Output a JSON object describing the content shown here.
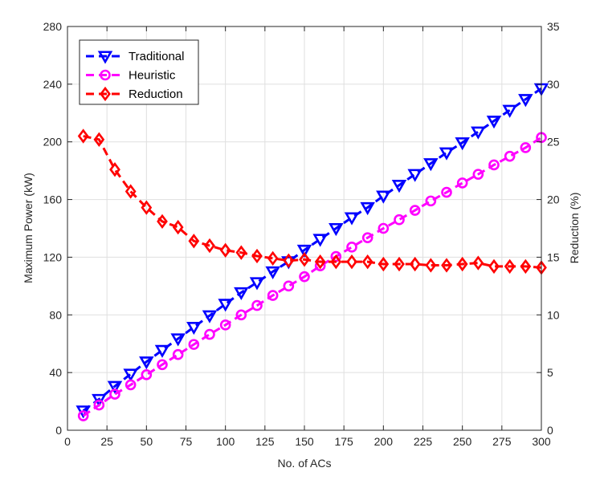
{
  "chart_data": {
    "type": "line",
    "title": "",
    "xlabel": "No. of ACs",
    "ylabel": "Maximum Power (kW)",
    "y2label": "Reduction (%)",
    "xlim": [
      0,
      300
    ],
    "ylim": [
      0,
      280
    ],
    "y2lim": [
      0,
      35
    ],
    "xticks": [
      "0",
      "25",
      "50",
      "75",
      "100",
      "125",
      "150",
      "175",
      "200",
      "225",
      "250",
      "275",
      "300"
    ],
    "yticks": [
      "0",
      "40",
      "80",
      "120",
      "160",
      "200",
      "240",
      "280"
    ],
    "y2ticks": [
      "0",
      "5",
      "10",
      "15",
      "20",
      "25",
      "30",
      "35"
    ],
    "grid": true,
    "legend_position": "top-left",
    "x": [
      10,
      20,
      30,
      40,
      50,
      60,
      70,
      80,
      90,
      100,
      110,
      120,
      130,
      140,
      150,
      160,
      170,
      180,
      190,
      200,
      210,
      220,
      230,
      240,
      250,
      260,
      270,
      280,
      290,
      300
    ],
    "series": [
      {
        "name": "Traditional",
        "axis": "left",
        "color": "#0000ff",
        "marker": "triangle-down",
        "values": [
          13.5,
          21.5,
          30.5,
          39,
          47.5,
          55.5,
          63.5,
          71.5,
          79.5,
          87.5,
          95.5,
          102.5,
          110,
          117,
          125,
          132.5,
          140,
          147.5,
          154.5,
          162.5,
          170,
          177.5,
          185,
          192.5,
          199.5,
          207,
          214.5,
          222,
          229.5,
          237
        ]
      },
      {
        "name": "Heuristic",
        "axis": "left",
        "color": "#ff00ff",
        "marker": "circle",
        "values": [
          10,
          17.5,
          25,
          31.5,
          38.5,
          45.5,
          52.5,
          59.5,
          66.5,
          73,
          80,
          86.5,
          93.5,
          100,
          106.5,
          114,
          120.5,
          127,
          133.5,
          140,
          146,
          152.5,
          159,
          165,
          171.5,
          177.5,
          184,
          190,
          196,
          203
        ]
      },
      {
        "name": "Reduction",
        "axis": "right",
        "color": "#ff0000",
        "marker": "diamond",
        "values": [
          25.5,
          25.2,
          22.6,
          20.7,
          19.3,
          18.1,
          17.6,
          16.4,
          16.0,
          15.6,
          15.4,
          15.1,
          14.9,
          14.7,
          14.8,
          14.6,
          14.6,
          14.6,
          14.6,
          14.4,
          14.4,
          14.4,
          14.3,
          14.3,
          14.4,
          14.5,
          14.2,
          14.2,
          14.2,
          14.1
        ]
      }
    ]
  }
}
